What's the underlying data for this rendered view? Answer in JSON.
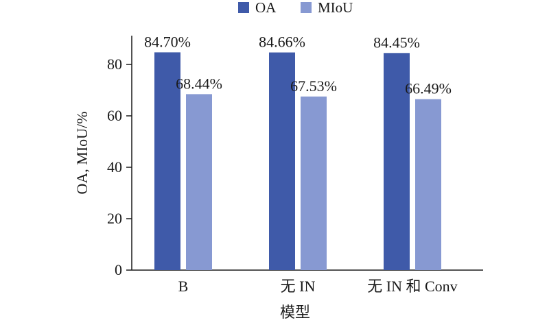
{
  "chart_data": {
    "type": "bar",
    "categories": [
      "B",
      "无 IN",
      "无 IN 和 Conv"
    ],
    "series": [
      {
        "name": "OA",
        "values": [
          84.7,
          84.66,
          84.45
        ],
        "labels": [
          "84.70%",
          "84.66%",
          "84.45%"
        ],
        "color": "#3f5aa9"
      },
      {
        "name": "MIoU",
        "values": [
          68.44,
          67.53,
          66.49
        ],
        "labels": [
          "68.44%",
          "67.53%",
          "66.49%"
        ],
        "color": "#8799d2"
      }
    ],
    "xlabel": "模型",
    "ylabel": "OA, MIoU/%",
    "ylim": [
      0,
      90
    ],
    "yticks": [
      0,
      20,
      40,
      60,
      80
    ],
    "grid": false,
    "legend_position": "top"
  }
}
